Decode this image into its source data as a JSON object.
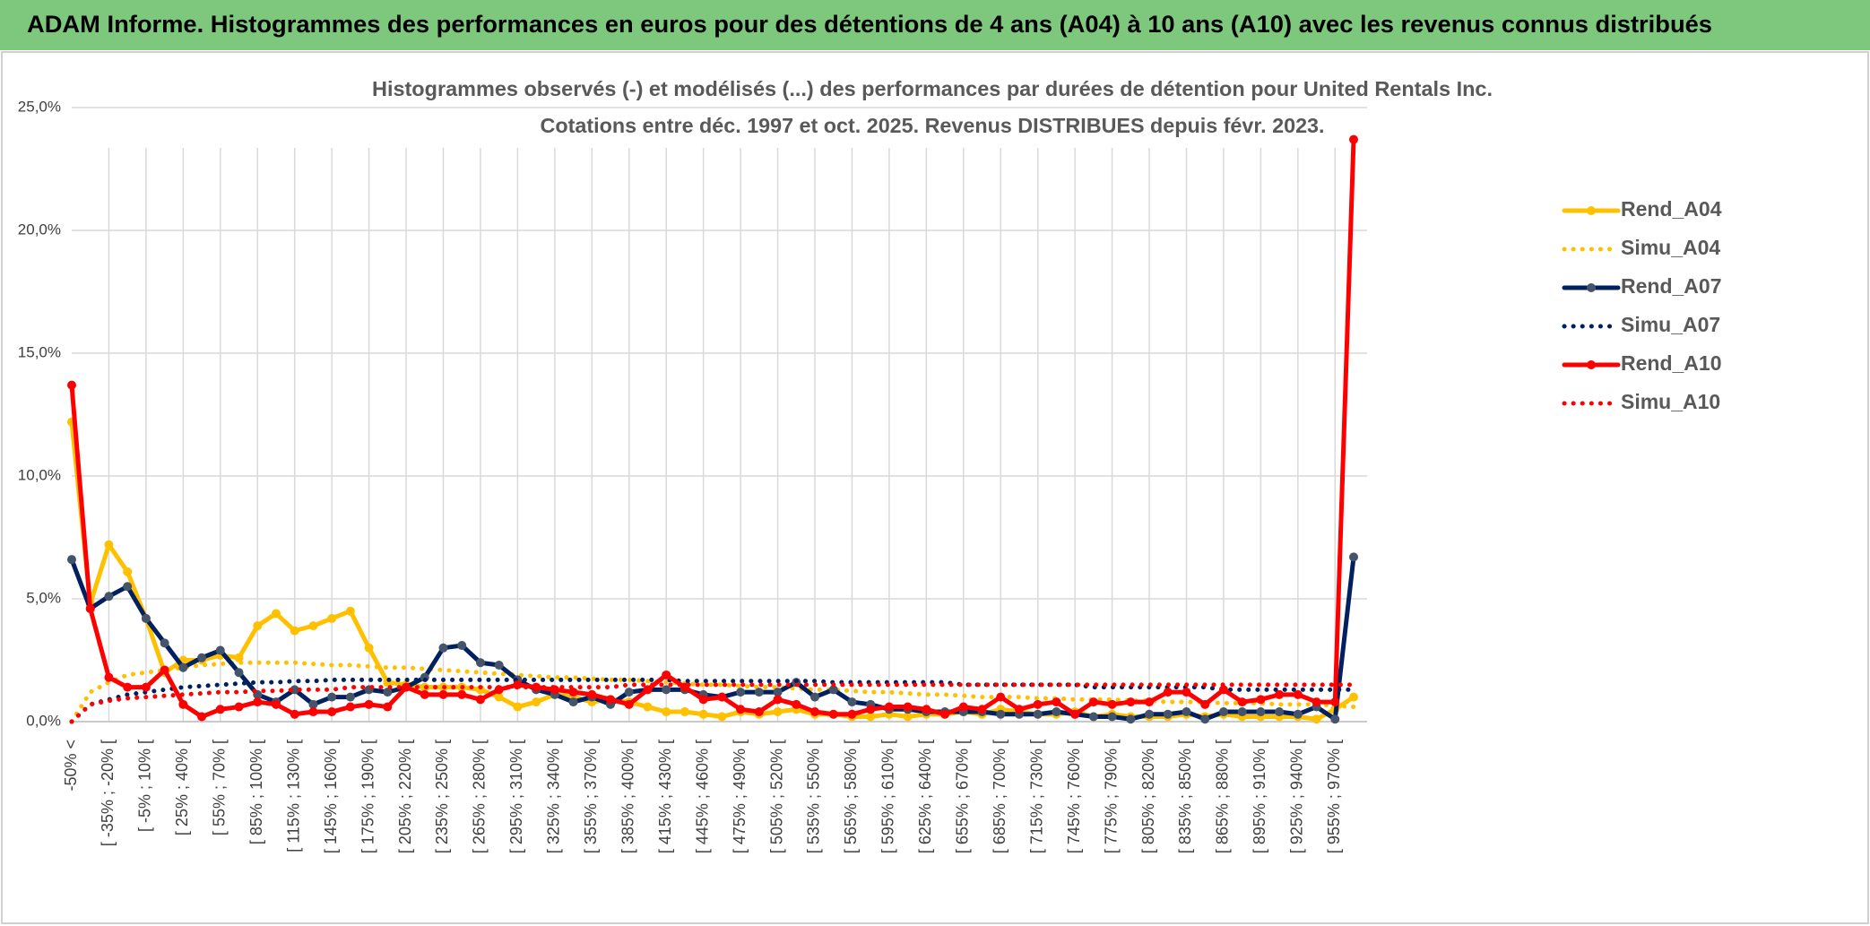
{
  "header": "ADAM Informe. Histogrammes des performances en euros pour des détentions de 4 ans (A04) à 10 ans (A10) avec les revenus connus distribués",
  "chart_data": {
    "type": "line",
    "title": "Histogrammes observés (-) et modélisés (...) des performances par durées de détention pour United Rentals Inc.",
    "subtitle": "Cotations entre déc. 1997 et oct. 2025. Revenus DISTRIBUES depuis févr. 2023.",
    "categories": [
      "-50% <",
      null,
      "[ -35% ; -20% [",
      null,
      "[ -5% ; 10% [",
      null,
      "[ 25% ; 40% [",
      null,
      "[ 55% ; 70% [",
      null,
      "[ 85% ; 100% [",
      null,
      "[ 115% ; 130% [",
      null,
      "[ 145% ; 160% [",
      null,
      "[ 175% ; 190% [",
      null,
      "[ 205% ; 220% [",
      null,
      "[ 235% ; 250% [",
      null,
      "[ 265% ; 280% [",
      null,
      "[ 295% ; 310% [",
      null,
      "[ 325% ; 340% [",
      null,
      "[ 355% ; 370% [",
      null,
      "[ 385% ; 400% [",
      null,
      "[ 415% ; 430% [",
      null,
      "[ 445% ; 460% [",
      null,
      "[ 475% ; 490% [",
      null,
      "[ 505% ; 520% [",
      null,
      "[ 535% ; 550% [",
      null,
      "[ 565% ; 580% [",
      null,
      "[ 595% ; 610% [",
      null,
      "[ 625% ; 640% [",
      null,
      "[ 655% ; 670% [",
      null,
      "[ 685% ; 700% [",
      null,
      "[ 715% ; 730% [",
      null,
      "[ 745% ; 760% [",
      null,
      "[ 775% ; 790% [",
      null,
      "[ 805% ; 820% [",
      null,
      "[ 835% ; 850% [",
      null,
      "[ 865% ; 880% [",
      null,
      "[ 895% ; 910% [",
      null,
      "[ 925% ; 940% [",
      null,
      "[ 955% ; 970% [",
      null
    ],
    "ylim": [
      0,
      25
    ],
    "yticks": [
      {
        "value": 0,
        "label": "0,0%"
      },
      {
        "value": 5,
        "label": "5,0%"
      },
      {
        "value": 10,
        "label": "10,0%"
      },
      {
        "value": 15,
        "label": "15,0%"
      },
      {
        "value": 20,
        "label": "20,0%"
      },
      {
        "value": 25,
        "label": "25,0%"
      }
    ],
    "grid": true,
    "legend": "right",
    "series": [
      {
        "name": "Rend_A04",
        "color": "#ffc000",
        "marker_color": "#ffc000",
        "line_style": "solid",
        "values": [
          12.2,
          4.8,
          7.2,
          6.1,
          4.2,
          2.0,
          2.5,
          2.5,
          2.7,
          2.6,
          3.9,
          4.4,
          3.7,
          3.9,
          4.2,
          4.5,
          3.0,
          1.6,
          1.5,
          1.4,
          1.4,
          1.4,
          1.3,
          1.0,
          0.6,
          0.8,
          1.1,
          1.0,
          0.8,
          0.9,
          0.8,
          0.6,
          0.4,
          0.4,
          0.3,
          0.2,
          0.4,
          0.3,
          0.4,
          0.5,
          0.3,
          0.3,
          0.2,
          0.2,
          0.3,
          0.2,
          0.3,
          0.3,
          0.4,
          0.3,
          0.5,
          0.4,
          0.3,
          0.3,
          0.4,
          0.2,
          0.3,
          0.2,
          0.2,
          0.2,
          0.3,
          0.2,
          0.3,
          0.2,
          0.2,
          0.2,
          0.2,
          0.1,
          0.5,
          1.0
        ]
      },
      {
        "name": "Simu_A04",
        "color": "#ffc000",
        "line_style": "dotted",
        "values": [
          0,
          1.2,
          1.6,
          1.9,
          2.0,
          2.1,
          2.2,
          2.3,
          2.35,
          2.4,
          2.4,
          2.4,
          2.4,
          2.35,
          2.3,
          2.3,
          2.25,
          2.2,
          2.2,
          2.15,
          2.1,
          2.05,
          2.0,
          1.95,
          1.9,
          1.85,
          1.8,
          1.8,
          1.75,
          1.7,
          1.7,
          1.65,
          1.6,
          1.55,
          1.5,
          1.5,
          1.45,
          1.4,
          1.4,
          1.35,
          1.3,
          1.3,
          1.25,
          1.2,
          1.2,
          1.15,
          1.1,
          1.1,
          1.05,
          1.0,
          1.0,
          1.0,
          0.95,
          0.95,
          0.9,
          0.9,
          0.9,
          0.85,
          0.85,
          0.8,
          0.8,
          0.8,
          0.75,
          0.75,
          0.75,
          0.7,
          0.7,
          0.7,
          0.65,
          0.6
        ]
      },
      {
        "name": "Rend_A07",
        "color": "#002060",
        "marker_color": "#44546a",
        "line_style": "solid",
        "values": [
          6.6,
          4.6,
          5.1,
          5.5,
          4.2,
          3.2,
          2.2,
          2.6,
          2.9,
          2.0,
          1.1,
          0.8,
          1.3,
          0.7,
          1.0,
          1.0,
          1.3,
          1.2,
          1.4,
          1.8,
          3.0,
          3.1,
          2.4,
          2.3,
          1.7,
          1.3,
          1.1,
          0.8,
          1.0,
          0.7,
          1.2,
          1.3,
          1.3,
          1.3,
          1.1,
          1.0,
          1.2,
          1.2,
          1.2,
          1.6,
          1.0,
          1.3,
          0.8,
          0.7,
          0.5,
          0.5,
          0.4,
          0.4,
          0.4,
          0.4,
          0.3,
          0.3,
          0.3,
          0.4,
          0.3,
          0.2,
          0.2,
          0.1,
          0.3,
          0.3,
          0.4,
          0.1,
          0.4,
          0.4,
          0.4,
          0.4,
          0.3,
          0.6,
          0.1,
          6.7
        ]
      },
      {
        "name": "Simu_A07",
        "color": "#002060",
        "line_style": "dotted",
        "values": [
          0,
          0.7,
          0.9,
          1.1,
          1.2,
          1.3,
          1.4,
          1.45,
          1.5,
          1.55,
          1.6,
          1.6,
          1.65,
          1.65,
          1.7,
          1.7,
          1.7,
          1.7,
          1.7,
          1.7,
          1.7,
          1.7,
          1.7,
          1.7,
          1.7,
          1.7,
          1.7,
          1.7,
          1.7,
          1.7,
          1.7,
          1.7,
          1.7,
          1.65,
          1.65,
          1.65,
          1.65,
          1.65,
          1.65,
          1.65,
          1.65,
          1.6,
          1.6,
          1.6,
          1.6,
          1.6,
          1.6,
          1.6,
          1.5,
          1.5,
          1.5,
          1.5,
          1.5,
          1.5,
          1.5,
          1.4,
          1.4,
          1.4,
          1.4,
          1.4,
          1.4,
          1.4,
          1.3,
          1.3,
          1.3,
          1.3,
          1.3,
          1.3,
          1.3,
          1.3
        ]
      },
      {
        "name": "Rend_A10",
        "color": "#ff0000",
        "marker_color": "#ff0000",
        "line_style": "solid",
        "values": [
          13.7,
          4.6,
          1.8,
          1.4,
          1.4,
          2.1,
          0.7,
          0.2,
          0.5,
          0.6,
          0.8,
          0.7,
          0.3,
          0.4,
          0.4,
          0.6,
          0.7,
          0.6,
          1.4,
          1.1,
          1.1,
          1.1,
          0.9,
          1.3,
          1.5,
          1.4,
          1.3,
          1.2,
          1.1,
          0.9,
          0.7,
          1.3,
          1.9,
          1.4,
          0.9,
          1.0,
          0.5,
          0.4,
          0.9,
          0.7,
          0.4,
          0.3,
          0.3,
          0.5,
          0.6,
          0.6,
          0.5,
          0.3,
          0.6,
          0.5,
          1.0,
          0.5,
          0.7,
          0.8,
          0.3,
          0.8,
          0.7,
          0.8,
          0.8,
          1.2,
          1.2,
          0.7,
          1.3,
          0.8,
          0.9,
          1.1,
          1.1,
          0.8,
          0.8,
          23.7
        ]
      },
      {
        "name": "Simu_A10",
        "color": "#ff0000",
        "line_style": "dotted",
        "values": [
          0,
          0.7,
          0.85,
          0.95,
          1.0,
          1.05,
          1.1,
          1.15,
          1.2,
          1.2,
          1.25,
          1.25,
          1.3,
          1.3,
          1.3,
          1.4,
          1.4,
          1.4,
          1.4,
          1.4,
          1.4,
          1.4,
          1.4,
          1.4,
          1.4,
          1.4,
          1.4,
          1.4,
          1.4,
          1.4,
          1.5,
          1.5,
          1.5,
          1.5,
          1.5,
          1.5,
          1.5,
          1.5,
          1.5,
          1.5,
          1.5,
          1.5,
          1.5,
          1.5,
          1.5,
          1.5,
          1.5,
          1.5,
          1.5,
          1.5,
          1.5,
          1.5,
          1.5,
          1.5,
          1.5,
          1.5,
          1.5,
          1.5,
          1.5,
          1.5,
          1.5,
          1.5,
          1.5,
          1.5,
          1.5,
          1.5,
          1.5,
          1.5,
          1.5,
          1.5
        ]
      }
    ]
  }
}
